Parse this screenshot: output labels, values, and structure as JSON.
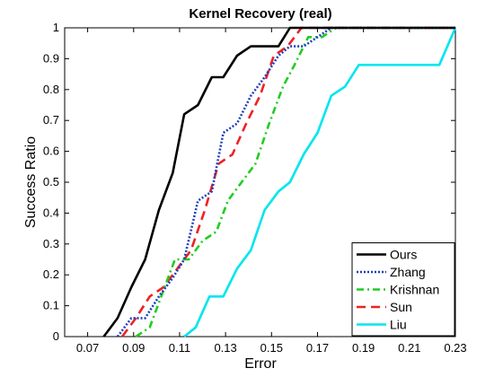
{
  "chart_data": {
    "type": "line",
    "title": "Kernel Recovery (real)",
    "xlabel": "Error",
    "ylabel": "Success Ratio",
    "xlim": [
      0.06,
      0.23
    ],
    "ylim": [
      0,
      1
    ],
    "xticks": [
      0.07,
      0.09,
      0.11,
      0.13,
      0.15,
      0.17,
      0.19,
      0.21,
      0.23
    ],
    "yticks": [
      0,
      0.1,
      0.2,
      0.3,
      0.4,
      0.5,
      0.6,
      0.7,
      0.8,
      0.9,
      1
    ],
    "grid": false,
    "legend_position": "bottom-right",
    "series": [
      {
        "name": "Ours",
        "color": "#000000",
        "dash": "solid",
        "points": [
          [
            0.077,
            0
          ],
          [
            0.083,
            0.06
          ],
          [
            0.089,
            0.16
          ],
          [
            0.095,
            0.25
          ],
          [
            0.101,
            0.41
          ],
          [
            0.107,
            0.53
          ],
          [
            0.112,
            0.72
          ],
          [
            0.118,
            0.75
          ],
          [
            0.124,
            0.84
          ],
          [
            0.129,
            0.84
          ],
          [
            0.135,
            0.91
          ],
          [
            0.141,
            0.94
          ],
          [
            0.147,
            0.94
          ],
          [
            0.153,
            0.94
          ],
          [
            0.158,
            1
          ],
          [
            0.23,
            1
          ]
        ]
      },
      {
        "name": "Zhang",
        "color": "#1f3fbf",
        "dash": "dotted",
        "points": [
          [
            0.083,
            0
          ],
          [
            0.089,
            0.06
          ],
          [
            0.095,
            0.06
          ],
          [
            0.101,
            0.13
          ],
          [
            0.107,
            0.19
          ],
          [
            0.112,
            0.25
          ],
          [
            0.118,
            0.44
          ],
          [
            0.124,
            0.47
          ],
          [
            0.129,
            0.66
          ],
          [
            0.135,
            0.69
          ],
          [
            0.141,
            0.78
          ],
          [
            0.147,
            0.84
          ],
          [
            0.153,
            0.91
          ],
          [
            0.158,
            0.94
          ],
          [
            0.164,
            0.94
          ],
          [
            0.17,
            0.97
          ],
          [
            0.176,
            1
          ],
          [
            0.23,
            1
          ]
        ]
      },
      {
        "name": "Krishnan",
        "color": "#22cc22",
        "dash": "dashdot",
        "points": [
          [
            0.091,
            0
          ],
          [
            0.097,
            0.03
          ],
          [
            0.102,
            0.13
          ],
          [
            0.108,
            0.25
          ],
          [
            0.114,
            0.25
          ],
          [
            0.12,
            0.31
          ],
          [
            0.126,
            0.34
          ],
          [
            0.131,
            0.44
          ],
          [
            0.137,
            0.5
          ],
          [
            0.143,
            0.56
          ],
          [
            0.149,
            0.69
          ],
          [
            0.155,
            0.81
          ],
          [
            0.16,
            0.88
          ],
          [
            0.166,
            0.97
          ],
          [
            0.172,
            0.97
          ],
          [
            0.178,
            1
          ],
          [
            0.23,
            1
          ]
        ]
      },
      {
        "name": "Sun",
        "color": "#ee2222",
        "dash": "dashed",
        "points": [
          [
            0.085,
            0
          ],
          [
            0.091,
            0.06
          ],
          [
            0.097,
            0.13
          ],
          [
            0.103,
            0.16
          ],
          [
            0.109,
            0.22
          ],
          [
            0.115,
            0.28
          ],
          [
            0.121,
            0.41
          ],
          [
            0.127,
            0.56
          ],
          [
            0.133,
            0.59
          ],
          [
            0.139,
            0.69
          ],
          [
            0.145,
            0.78
          ],
          [
            0.151,
            0.91
          ],
          [
            0.157,
            0.94
          ],
          [
            0.163,
            1
          ],
          [
            0.23,
            1
          ]
        ]
      },
      {
        "name": "Liu",
        "color": "#00e5ee",
        "dash": "solid",
        "points": [
          [
            0.112,
            0
          ],
          [
            0.117,
            0.03
          ],
          [
            0.123,
            0.13
          ],
          [
            0.129,
            0.13
          ],
          [
            0.135,
            0.22
          ],
          [
            0.141,
            0.28
          ],
          [
            0.147,
            0.41
          ],
          [
            0.153,
            0.47
          ],
          [
            0.158,
            0.5
          ],
          [
            0.164,
            0.59
          ],
          [
            0.17,
            0.66
          ],
          [
            0.176,
            0.78
          ],
          [
            0.182,
            0.81
          ],
          [
            0.188,
            0.88
          ],
          [
            0.194,
            0.88
          ],
          [
            0.2,
            0.88
          ],
          [
            0.206,
            0.88
          ],
          [
            0.212,
            0.88
          ],
          [
            0.218,
            0.88
          ],
          [
            0.223,
            0.88
          ],
          [
            0.23,
            1
          ]
        ]
      }
    ]
  }
}
